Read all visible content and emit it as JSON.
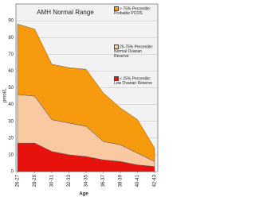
{
  "chart_data": {
    "type": "stacked-area",
    "title": "AMH Normal Range",
    "x_label": "Age",
    "y_label": "pmol/L",
    "categories": [
      "26-27",
      "28-29",
      "30-31",
      "32-33",
      "34-35",
      "36-37",
      "38-39",
      "40-41",
      "42-43"
    ],
    "series": [
      {
        "name": "< 25% Percentile: Low Ovarian Reserve",
        "color": "#e8120c",
        "values": [
          17,
          17,
          12,
          10,
          9,
          7,
          6,
          4,
          3
        ]
      },
      {
        "name": "25-75% Percentile: Normal Ovarian Reserve",
        "color": "#f9c9a2",
        "values": [
          29,
          28,
          19,
          19,
          18,
          11,
          10,
          7,
          3
        ]
      },
      {
        "name": "> 75% Percentile: Probable PCOS",
        "color": "#f79a0e",
        "values": [
          42,
          40,
          33,
          33,
          34,
          29,
          22,
          20,
          8
        ]
      }
    ],
    "ylim": [
      0,
      100
    ],
    "yticks": [
      0,
      10,
      20,
      30,
      40,
      50,
      60,
      70,
      80,
      90
    ],
    "grid": true
  }
}
